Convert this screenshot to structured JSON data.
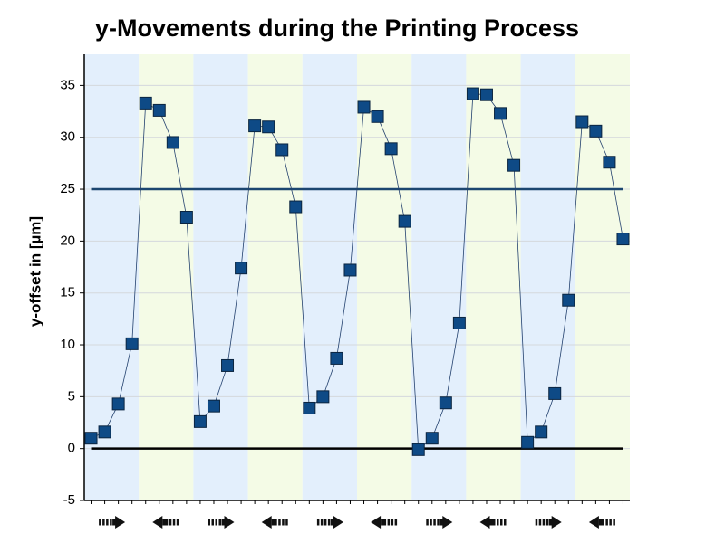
{
  "chart_data": {
    "type": "line",
    "title": "y-Movements during the Printing Process",
    "y_label": "y-offset  in [µm]",
    "x": [
      1,
      2,
      3,
      4,
      5,
      6,
      7,
      8,
      9,
      10,
      11,
      12,
      13,
      14,
      15,
      16,
      17,
      18,
      19,
      20,
      21,
      22,
      23,
      24,
      25,
      26,
      27,
      28,
      29,
      30,
      31,
      32,
      33,
      34,
      35,
      36,
      37,
      38,
      39,
      40
    ],
    "values": [
      1.0,
      1.6,
      4.3,
      10.1,
      33.3,
      32.6,
      29.5,
      22.3,
      2.6,
      4.1,
      8.0,
      17.4,
      31.1,
      31.0,
      28.8,
      23.3,
      3.9,
      5.0,
      8.7,
      17.2,
      32.9,
      32.0,
      28.9,
      21.9,
      -0.1,
      1.0,
      4.4,
      12.1,
      34.2,
      34.1,
      32.3,
      27.3,
      0.6,
      1.6,
      5.3,
      14.3,
      31.5,
      30.6,
      27.6,
      20.2
    ],
    "color": "#0e4a86",
    "xlim": [
      0.5,
      40.5
    ],
    "ylim": [
      -5,
      38
    ],
    "yticks": [
      -5,
      0,
      5,
      10,
      15,
      20,
      25,
      30,
      35
    ],
    "grid": true,
    "hlines": [
      {
        "value": 25,
        "color": "#1c4670"
      },
      {
        "value": 0,
        "color": "#000000"
      }
    ]
  }
}
